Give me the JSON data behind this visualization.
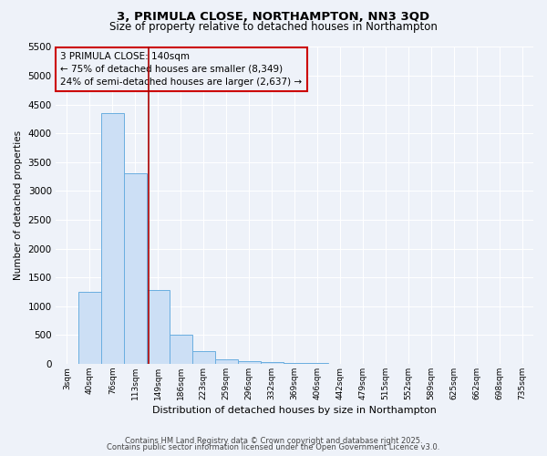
{
  "title1": "3, PRIMULA CLOSE, NORTHAMPTON, NN3 3QD",
  "title2": "Size of property relative to detached houses in Northampton",
  "xlabel": "Distribution of detached houses by size in Northampton",
  "ylabel": "Number of detached properties",
  "categories": [
    "3sqm",
    "40sqm",
    "76sqm",
    "113sqm",
    "149sqm",
    "186sqm",
    "223sqm",
    "259sqm",
    "296sqm",
    "332sqm",
    "369sqm",
    "406sqm",
    "442sqm",
    "479sqm",
    "515sqm",
    "552sqm",
    "589sqm",
    "625sqm",
    "662sqm",
    "698sqm",
    "735sqm"
  ],
  "values": [
    0,
    1250,
    4350,
    3300,
    1280,
    500,
    215,
    80,
    50,
    30,
    20,
    20,
    0,
    0,
    0,
    0,
    0,
    0,
    0,
    0,
    0
  ],
  "bar_color": "#ccdff5",
  "bar_edge_color": "#6aaee0",
  "background_color": "#eef2f9",
  "grid_color": "#ffffff",
  "vline_color": "#aa0000",
  "annotation_text": "3 PRIMULA CLOSE: 140sqm\n← 75% of detached houses are smaller (8,349)\n24% of semi-detached houses are larger (2,637) →",
  "annotation_box_color": "#cc0000",
  "ylim": [
    0,
    5500
  ],
  "yticks": [
    0,
    500,
    1000,
    1500,
    2000,
    2500,
    3000,
    3500,
    4000,
    4500,
    5000,
    5500
  ],
  "vline_pos": 3.6,
  "footnote1": "Contains HM Land Registry data © Crown copyright and database right 2025.",
  "footnote2": "Contains public sector information licensed under the Open Government Licence v3.0."
}
